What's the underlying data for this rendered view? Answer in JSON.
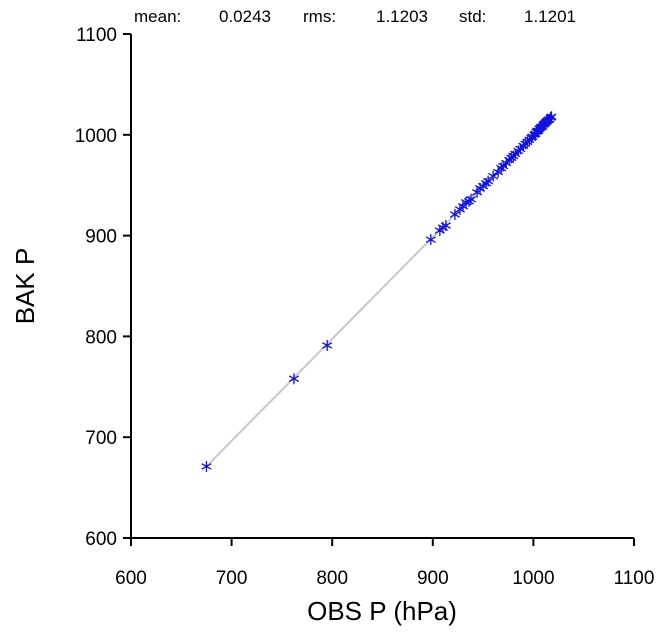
{
  "stats": {
    "mean_label": "mean:",
    "mean_value": "0.0243",
    "rms_label": "rms:",
    "rms_value": "1.1203",
    "std_label": "std:",
    "std_value": "1.1201"
  },
  "chart_data": {
    "type": "scatter",
    "xlabel": "OBS P  (hPa)",
    "ylabel": "BAK P",
    "xlim": [
      600,
      1100
    ],
    "ylim": [
      600,
      1100
    ],
    "xticks": [
      "600",
      "700",
      "800",
      "900",
      "1000",
      "1100"
    ],
    "yticks": [
      "600",
      "700",
      "800",
      "900",
      "1000",
      "1100"
    ],
    "grid": false,
    "marker": "asterisk",
    "marker_color": "#1010e0",
    "reference_line": {
      "from": [
        675,
        671
      ],
      "to": [
        1018,
        1018
      ],
      "color": "#c8c8c8"
    },
    "series": [
      {
        "points": [
          [
            675,
            671
          ],
          [
            762,
            758
          ],
          [
            795,
            791
          ],
          [
            898,
            896
          ],
          [
            907,
            905
          ],
          [
            910,
            908
          ],
          [
            913,
            910
          ],
          [
            922,
            921
          ],
          [
            927,
            926
          ],
          [
            930,
            929
          ],
          [
            933,
            933
          ],
          [
            936,
            934
          ],
          [
            938,
            936
          ],
          [
            944,
            943
          ],
          [
            947,
            947
          ],
          [
            950,
            949
          ],
          [
            953,
            952
          ],
          [
            955,
            954
          ],
          [
            960,
            959
          ],
          [
            965,
            963
          ],
          [
            968,
            967
          ],
          [
            970,
            969
          ],
          [
            973,
            972
          ],
          [
            976,
            975
          ],
          [
            978,
            977
          ],
          [
            980,
            979
          ],
          [
            982,
            981
          ],
          [
            985,
            984
          ],
          [
            987,
            986
          ],
          [
            990,
            989
          ],
          [
            992,
            991
          ],
          [
            994,
            993
          ],
          [
            996,
            995
          ],
          [
            998,
            997
          ],
          [
            999,
            998
          ],
          [
            1001,
            1000
          ],
          [
            1002,
            1001
          ],
          [
            1003,
            1003
          ],
          [
            1004,
            1004
          ],
          [
            1005,
            1004
          ],
          [
            1006,
            1006
          ],
          [
            1007,
            1007
          ],
          [
            1008,
            1008
          ],
          [
            1009,
            1008
          ],
          [
            1010,
            1010
          ],
          [
            1011,
            1011
          ],
          [
            1012,
            1012
          ],
          [
            1013,
            1013
          ],
          [
            1014,
            1014
          ],
          [
            1015,
            1015
          ],
          [
            1016,
            1015
          ],
          [
            1017,
            1017
          ],
          [
            1018,
            1018
          ]
        ]
      }
    ]
  }
}
